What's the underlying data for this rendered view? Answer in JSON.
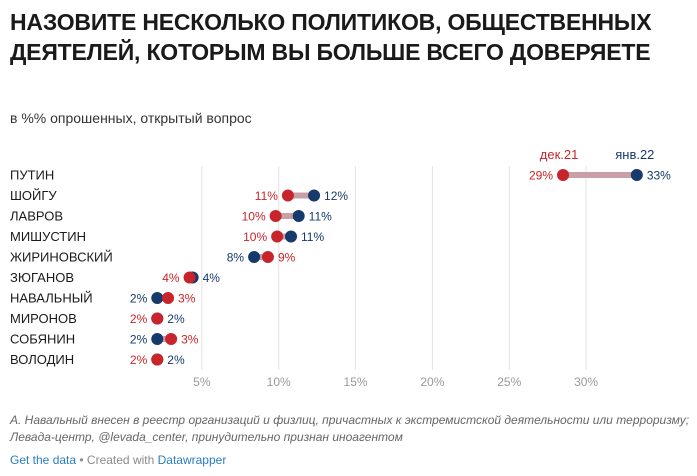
{
  "title": "НАЗОВИТЕ НЕСКОЛЬКО ПОЛИТИКОВ, ОБЩЕСТВЕННЫХ ДЕЯТЕЛЕЙ, КОТОРЫМ ВЫ БОЛЬШЕ ВСЕГО ДОВЕРЯЕТЕ",
  "subtitle": "в %% опрошенных, открытый вопрос",
  "notes": "А. Навальный внесен в реестр организаций и физлиц, причастных к экстремистской деятельности или терроризму; Левада-центр, @levada_center, принудительно признан иноагентом",
  "footer": {
    "get_data": "Get the data",
    "separator": " • Created with ",
    "created_with": "Datawrapper"
  },
  "colors": {
    "dec21": "#c8242b",
    "jan22": "#163a6b",
    "range": "#c9a0a8",
    "grid": "#e2e2e2",
    "axis_text": "#999999"
  },
  "chart_data": {
    "type": "dot-range",
    "series": [
      {
        "name": "дек.21",
        "values": [
          29,
          11,
          10,
          10,
          9,
          4,
          3,
          2,
          3,
          2
        ]
      },
      {
        "name": "янв.22",
        "values": [
          33,
          12,
          11,
          11,
          8,
          4,
          2,
          2,
          2,
          2
        ]
      }
    ],
    "plot_values": {
      "dec21": [
        28.5,
        10.6,
        9.8,
        9.9,
        9.3,
        4.2,
        2.8,
        2.1,
        3.0,
        2.1
      ],
      "jan22": [
        33.3,
        12.3,
        11.3,
        10.8,
        8.4,
        4.4,
        2.1,
        2.1,
        2.1,
        2.1
      ]
    },
    "categories": [
      "ПУТИН",
      "ШОЙГУ",
      "ЛАВРОВ",
      "МИШУСТИН",
      "ЖИРИНОВСКИЙ",
      "ЗЮГАНОВ",
      "НАВАЛЬНЫЙ",
      "МИРОНОВ",
      "СОБЯНИН",
      "ВОЛОДИН"
    ],
    "x_ticks": [
      5,
      10,
      15,
      20,
      25,
      30
    ],
    "x_tick_labels": [
      "5%",
      "10%",
      "15%",
      "20%",
      "25%",
      "30%"
    ],
    "xlim": [
      0,
      36
    ],
    "xlabel": "",
    "ylabel": ""
  }
}
